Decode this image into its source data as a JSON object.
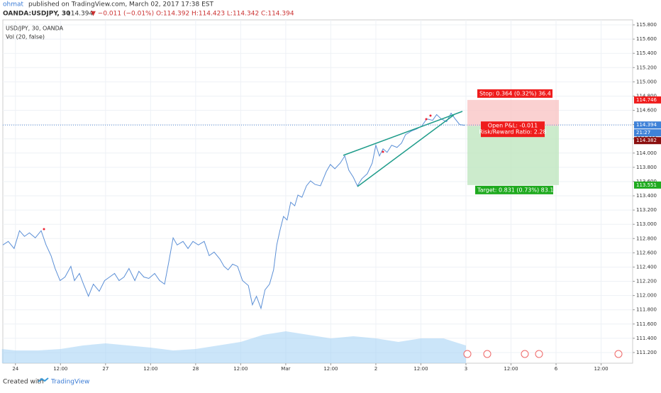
{
  "header": {
    "author": "ohmat",
    "published": "published on TradingView.com, March 02, 2017 17:38 EST",
    "symbol": "OANDA:USDJPY, 30",
    "last": "114.394",
    "change": "▼ −0.011 (−0.01%)",
    "ohlc": "O:114.392 H:114.423 L:114.342 C:114.394"
  },
  "footer": {
    "created": "Created with",
    "brand": "TradingView"
  },
  "chart_data": {
    "type": "line",
    "title": "USD/JPY, 30, OANDA",
    "subtitle": "Vol (20, false)",
    "series": [
      {
        "name": "USD/JPY",
        "color": "#5b8fd6",
        "x": [
          -0.28,
          -0.16,
          -0.03,
          0.09,
          0.2,
          0.31,
          0.44,
          0.57,
          0.68,
          0.79,
          0.88,
          0.99,
          1.1,
          1.23,
          1.31,
          1.42,
          1.51,
          1.62,
          1.73,
          1.86,
          1.98,
          2.09,
          2.2,
          2.3,
          2.41,
          2.52,
          2.65,
          2.74,
          2.85,
          2.96,
          3.09,
          3.2,
          3.31,
          3.4,
          3.5,
          3.59,
          3.72,
          3.83,
          3.94,
          4.06,
          4.19,
          4.3,
          4.41,
          4.54,
          4.63,
          4.72,
          4.82,
          4.93,
          5.04,
          5.17,
          5.26,
          5.35,
          5.45,
          5.54,
          5.64,
          5.73,
          5.8,
          5.87,
          5.95,
          6.03,
          6.11,
          6.2,
          6.27,
          6.36,
          6.46,
          6.55,
          6.65,
          6.77,
          6.9,
          6.99,
          7.09,
          7.21,
          7.31,
          7.4,
          7.5,
          7.59,
          7.69,
          7.81,
          7.92,
          8.0,
          8.08,
          8.16,
          8.25,
          8.35,
          8.47,
          8.57,
          8.66,
          8.79,
          8.91,
          9.02,
          9.13,
          9.26,
          9.35,
          9.45,
          9.57,
          9.67,
          9.76,
          9.86,
          9.97
        ],
        "values": [
          112.71,
          112.76,
          112.66,
          112.91,
          112.83,
          112.88,
          112.81,
          112.91,
          112.71,
          112.56,
          112.38,
          112.21,
          112.26,
          112.41,
          112.21,
          112.31,
          112.16,
          111.99,
          112.16,
          112.06,
          112.21,
          112.26,
          112.31,
          112.21,
          112.26,
          112.38,
          112.21,
          112.34,
          112.26,
          112.24,
          112.31,
          112.21,
          112.16,
          112.46,
          112.81,
          112.71,
          112.76,
          112.66,
          112.76,
          112.71,
          112.76,
          112.56,
          112.61,
          112.51,
          112.41,
          112.36,
          112.44,
          112.41,
          112.21,
          112.14,
          111.87,
          111.99,
          111.82,
          112.08,
          112.16,
          112.36,
          112.71,
          112.91,
          113.11,
          113.06,
          113.31,
          113.26,
          113.41,
          113.38,
          113.54,
          113.61,
          113.56,
          113.54,
          113.74,
          113.84,
          113.78,
          113.86,
          113.96,
          113.76,
          113.66,
          113.54,
          113.64,
          113.71,
          113.86,
          114.11,
          113.96,
          114.06,
          114.01,
          114.11,
          114.08,
          114.14,
          114.26,
          114.31,
          114.34,
          114.38,
          114.48,
          114.46,
          114.54,
          114.48,
          114.44,
          114.56,
          114.48,
          114.4,
          114.39
        ]
      }
    ],
    "volume": {
      "color": "#a9d3f5",
      "x": [
        -0.3,
        0,
        0.5,
        1,
        1.5,
        2,
        2.5,
        3,
        3.5,
        4,
        4.5,
        5,
        5.5,
        6,
        6.5,
        7,
        7.5,
        8,
        8.5,
        9,
        9.5,
        10
      ],
      "values": [
        20,
        18,
        18,
        20,
        25,
        28,
        25,
        22,
        18,
        20,
        25,
        30,
        40,
        45,
        40,
        35,
        38,
        35,
        30,
        35,
        35,
        25
      ],
      "ylim": [
        0,
        130
      ]
    },
    "xlim": [
      -0.28,
      13.7
    ],
    "ylim": [
      111.05,
      115.87
    ],
    "grid": true,
    "xticks": [
      {
        "value": 0,
        "label": "24"
      },
      {
        "value": 1,
        "label": "12:00"
      },
      {
        "value": 2,
        "label": "27"
      },
      {
        "value": 3,
        "label": "12:00"
      },
      {
        "value": 4,
        "label": "28"
      },
      {
        "value": 5,
        "label": "12:00"
      },
      {
        "value": 6,
        "label": "Mar"
      },
      {
        "value": 7,
        "label": "12:00"
      },
      {
        "value": 8,
        "label": "2"
      },
      {
        "value": 9,
        "label": "12:00"
      },
      {
        "value": 10,
        "label": "3"
      },
      {
        "value": 11,
        "label": "12:00"
      },
      {
        "value": 12,
        "label": "6"
      },
      {
        "value": 13,
        "label": "12:00"
      }
    ],
    "yticks": [
      {
        "value": 111.2,
        "label": "111.200"
      },
      {
        "value": 111.4,
        "label": "111.400"
      },
      {
        "value": 111.6,
        "label": "111.600"
      },
      {
        "value": 111.8,
        "label": "111.800"
      },
      {
        "value": 112,
        "label": "112.000"
      },
      {
        "value": 112.2,
        "label": "112.200"
      },
      {
        "value": 112.4,
        "label": "112.400"
      },
      {
        "value": 112.6,
        "label": "112.600"
      },
      {
        "value": 112.8,
        "label": "112.800"
      },
      {
        "value": 113,
        "label": "113.000"
      },
      {
        "value": 113.2,
        "label": "113.200"
      },
      {
        "value": 113.4,
        "label": "113.400"
      },
      {
        "value": 113.6,
        "label": "113.600"
      },
      {
        "value": 113.8,
        "label": "113.800"
      },
      {
        "value": 114,
        "label": "114.000"
      },
      {
        "value": 114.2,
        "label": "114.200"
      },
      {
        "value": 114.4,
        "label": "114.400"
      },
      {
        "value": 114.6,
        "label": "114.600"
      },
      {
        "value": 114.8,
        "label": "114.800"
      },
      {
        "value": 115,
        "label": "115.000"
      },
      {
        "value": 115.2,
        "label": "115.200"
      },
      {
        "value": 115.4,
        "label": "115.400"
      },
      {
        "value": 115.6,
        "label": "115.600"
      },
      {
        "value": 115.8,
        "label": "115.800"
      }
    ],
    "position": {
      "stop": {
        "value": 114.746,
        "label": "114.746"
      },
      "entry": {
        "value": 114.382,
        "label": "114.382"
      },
      "target": {
        "value": 113.551,
        "label": "113.551"
      },
      "current": {
        "value": 114.394,
        "label": "114.394"
      },
      "countdown": "21:27",
      "stop_text": "Stop: 0.364 (0.32%) 36.4",
      "pnl_text": "Open P&L: -0.011",
      "ratio_text": "Risk/Reward Ratio: 2.28",
      "target_text": "Target: 0.831 (0.73%) 83.1"
    }
  }
}
